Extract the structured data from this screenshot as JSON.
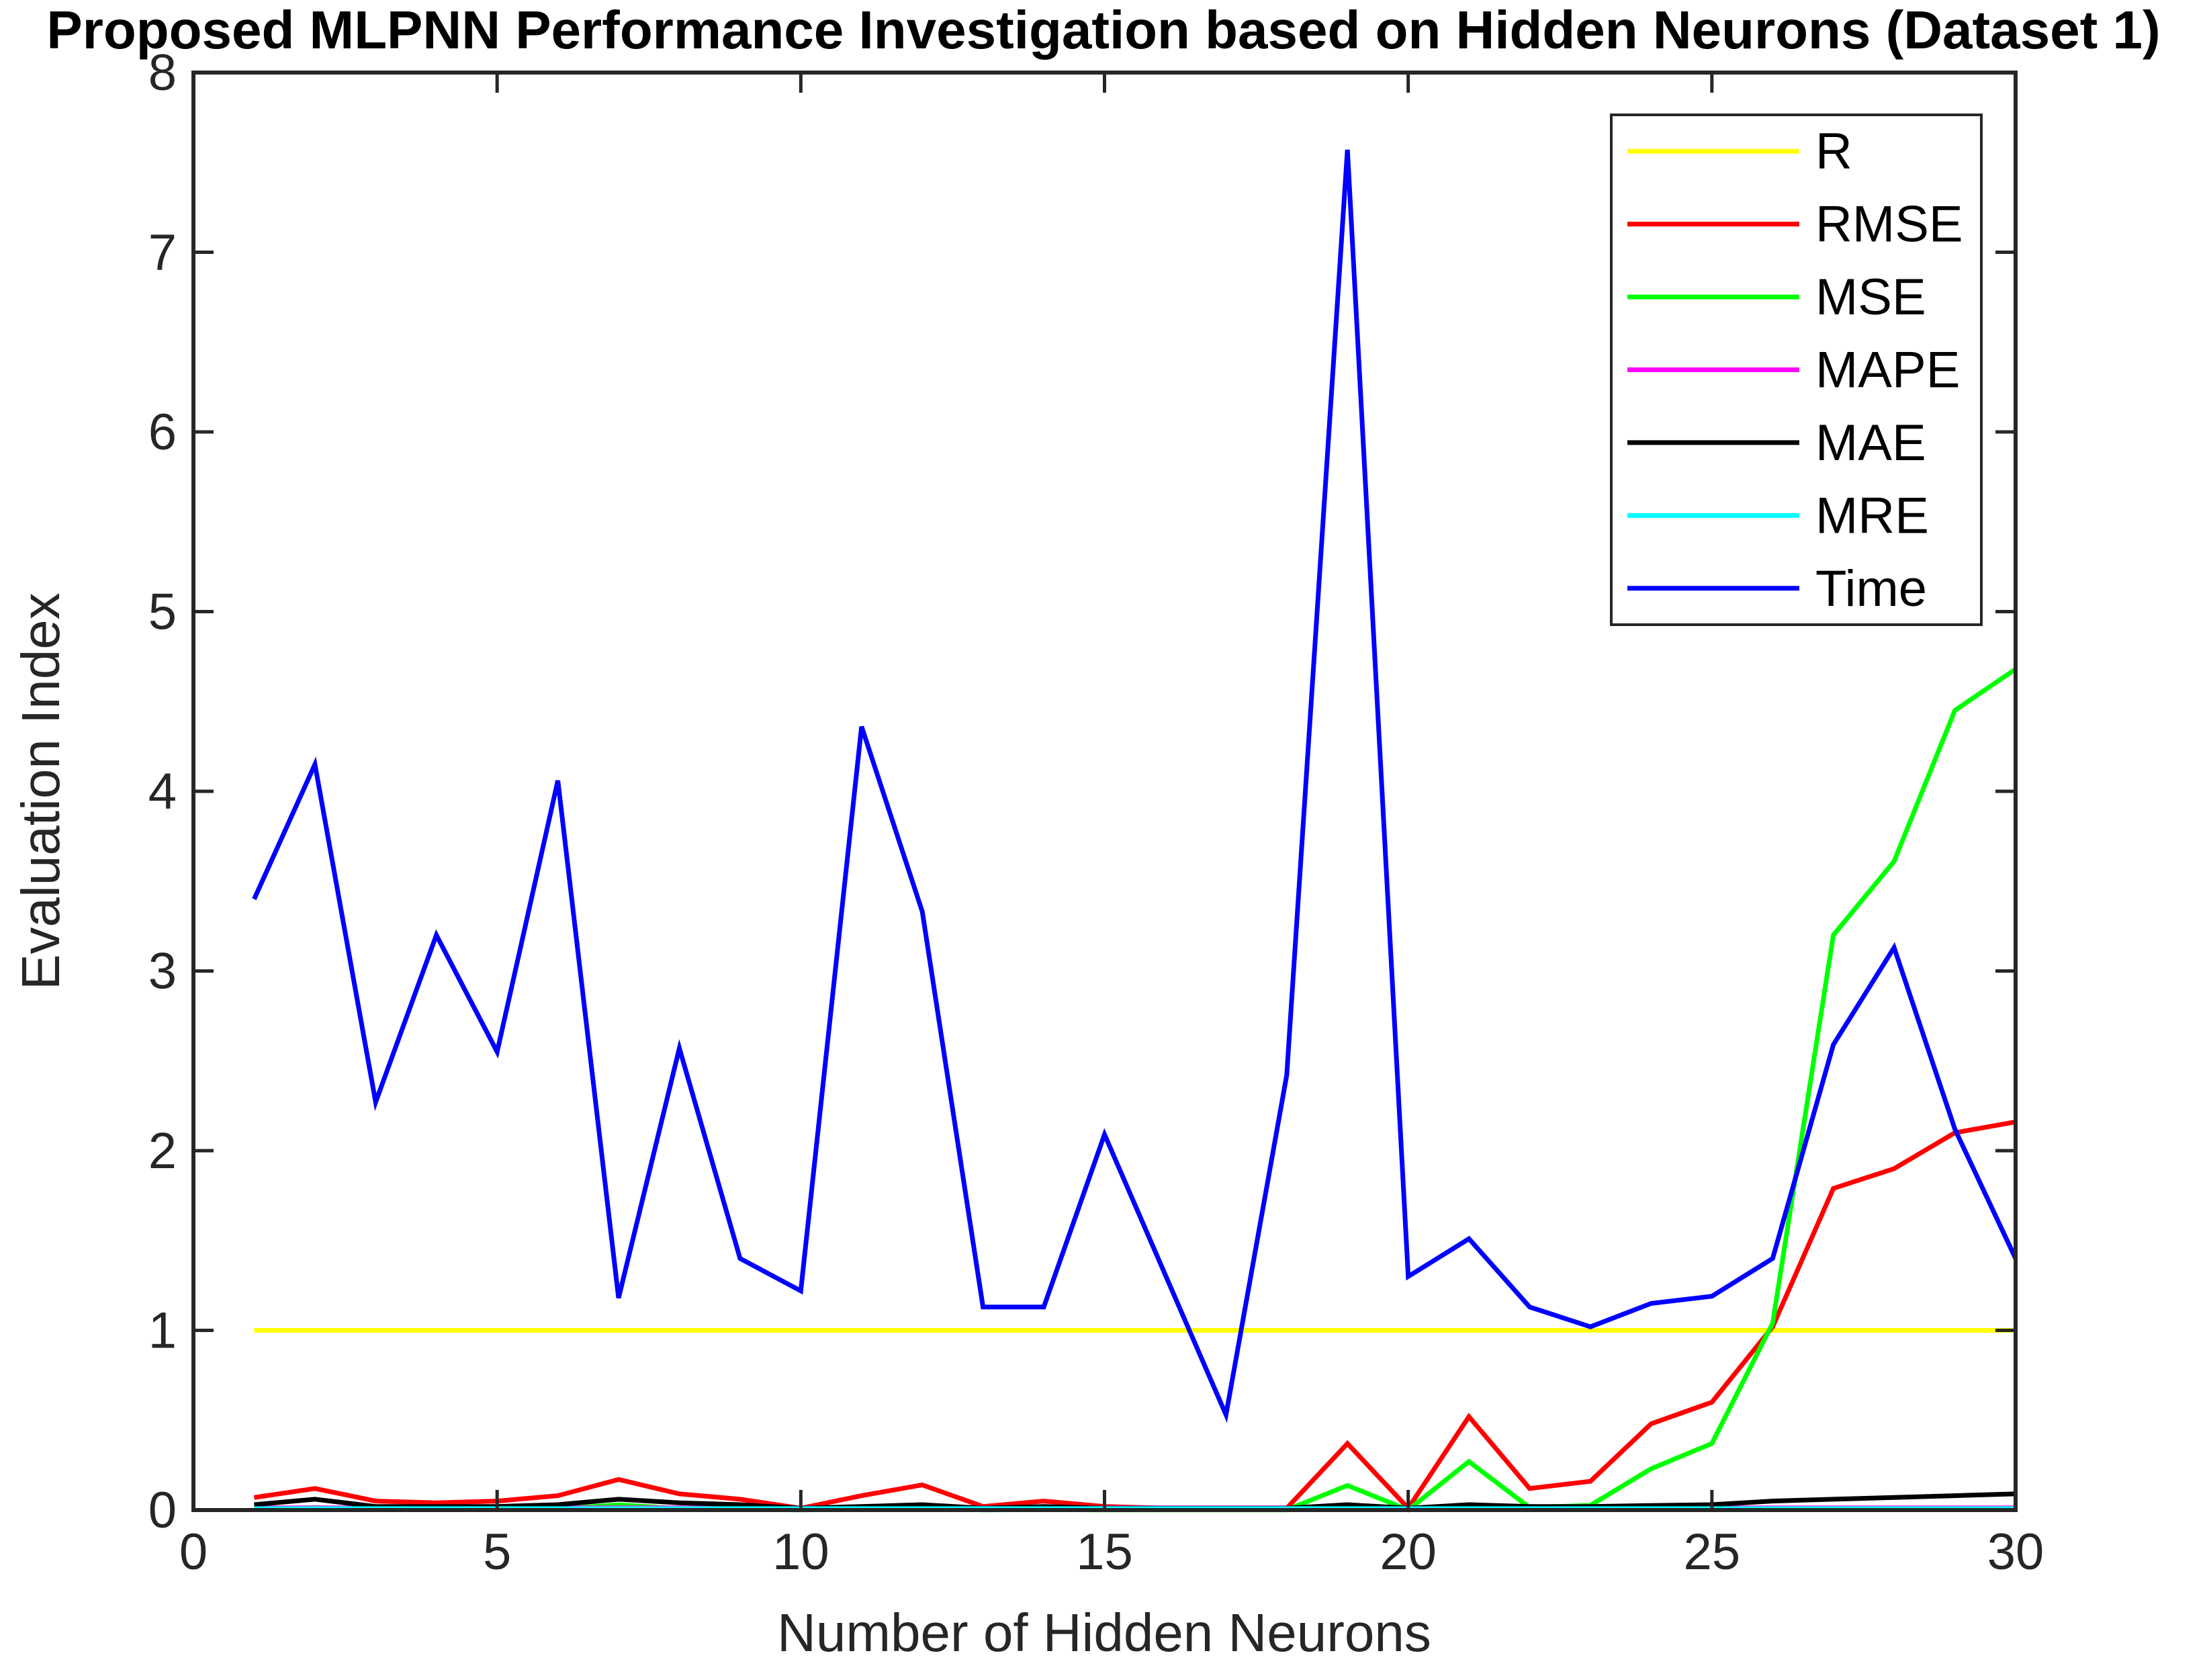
{
  "title": "Proposed MLPNN Performance Investigation based on Hidden Neurons (Dataset 1)",
  "axes": {
    "xlabel": "Number of Hidden Neurons",
    "ylabel": "Evaluation Index",
    "xtick_labels": [
      "0",
      "5",
      "10",
      "15",
      "20",
      "25",
      "30"
    ],
    "ytick_labels": [
      "0",
      "1",
      "2",
      "3",
      "4",
      "5",
      "6",
      "7",
      "8"
    ]
  },
  "legend": {
    "position": "top-right",
    "entries": [
      {
        "label": "R",
        "color": "#FFFF00"
      },
      {
        "label": "RMSE",
        "color": "#FF0000"
      },
      {
        "label": "MSE",
        "color": "#00FF00"
      },
      {
        "label": "MAPE",
        "color": "#FF00FF"
      },
      {
        "label": "MAE",
        "color": "#000000"
      },
      {
        "label": "MRE",
        "color": "#00FFFF"
      },
      {
        "label": "Time",
        "color": "#0000FF"
      }
    ]
  },
  "chart_data": {
    "type": "line",
    "title": "Proposed MLPNN Performance Investigation based on Hidden Neurons (Dataset 1)",
    "xlabel": "Number of Hidden Neurons",
    "ylabel": "Evaluation Index",
    "xlim": [
      0,
      30
    ],
    "ylim": [
      0,
      8
    ],
    "xticks": [
      0,
      5,
      10,
      15,
      20,
      25,
      30
    ],
    "yticks": [
      0,
      1,
      2,
      3,
      4,
      5,
      6,
      7,
      8
    ],
    "grid": false,
    "legend_position": "top-right",
    "x": [
      1,
      2,
      3,
      4,
      5,
      6,
      7,
      8,
      9,
      10,
      11,
      12,
      13,
      14,
      15,
      16,
      17,
      18,
      19,
      20,
      21,
      22,
      23,
      24,
      25,
      26,
      27,
      28,
      29,
      30
    ],
    "series": [
      {
        "name": "R",
        "color": "#FFFF00",
        "values": [
          1,
          1,
          1,
          1,
          1,
          1,
          1,
          1,
          1,
          1,
          1,
          1,
          1,
          1,
          1,
          1,
          1,
          1,
          1,
          1,
          1,
          1,
          1,
          1,
          1,
          1,
          1,
          1,
          1,
          1
        ]
      },
      {
        "name": "RMSE",
        "color": "#FF0000",
        "values": [
          0.07,
          0.12,
          0.05,
          0.04,
          0.05,
          0.08,
          0.17,
          0.09,
          0.06,
          0.01,
          0.08,
          0.14,
          0.02,
          0.05,
          0.02,
          0.01,
          0.005,
          0.01,
          0.37,
          0.01,
          0.52,
          0.12,
          0.16,
          0.48,
          0.6,
          1.02,
          1.79,
          1.9,
          2.1,
          2.16
        ]
      },
      {
        "name": "MSE",
        "color": "#00FF00",
        "values": [
          0.005,
          0.014,
          0.003,
          0.002,
          0.003,
          0.006,
          0.029,
          0.008,
          0.004,
          0.001,
          0.006,
          0.02,
          0.001,
          0.003,
          0.001,
          0.001,
          0.001,
          0.001,
          0.137,
          0.001,
          0.27,
          0.014,
          0.026,
          0.23,
          0.37,
          1.04,
          3.2,
          3.61,
          4.45,
          4.68
        ]
      },
      {
        "name": "MAPE",
        "color": "#FF00FF",
        "values": [
          0.012,
          0.012,
          0.012,
          0.012,
          0.012,
          0.012,
          0.012,
          0.012,
          0.012,
          0.012,
          0.012,
          0.012,
          0.012,
          0.012,
          0.012,
          0.012,
          0.012,
          0.012,
          0.012,
          0.012,
          0.012,
          0.012,
          0.012,
          0.012,
          0.012,
          0.012,
          0.012,
          0.012,
          0.012,
          0.012
        ]
      },
      {
        "name": "MAE",
        "color": "#000000",
        "values": [
          0.03,
          0.06,
          0.02,
          0.02,
          0.02,
          0.03,
          0.06,
          0.04,
          0.03,
          0.01,
          0.02,
          0.03,
          0.01,
          0.02,
          0.01,
          0.01,
          0.01,
          0.01,
          0.03,
          0.01,
          0.03,
          0.02,
          0.02,
          0.025,
          0.03,
          0.05,
          0.06,
          0.07,
          0.08,
          0.09
        ]
      },
      {
        "name": "MRE",
        "color": "#00FFFF",
        "values": [
          0.008,
          0.008,
          0.008,
          0.008,
          0.008,
          0.008,
          0.008,
          0.008,
          0.008,
          0.008,
          0.008,
          0.008,
          0.008,
          0.008,
          0.008,
          0.008,
          0.008,
          0.008,
          0.008,
          0.008,
          0.008,
          0.008,
          0.008,
          0.008,
          0.008,
          0.008,
          0.008,
          0.008,
          0.008,
          0.008
        ]
      },
      {
        "name": "Time",
        "color": "#0000FF",
        "values": [
          3.4,
          4.15,
          2.27,
          3.2,
          2.55,
          4.06,
          1.18,
          2.57,
          1.4,
          1.22,
          4.36,
          3.33,
          1.13,
          1.13,
          2.09,
          1.31,
          0.53,
          2.42,
          7.57,
          1.3,
          1.51,
          1.13,
          1.02,
          1.15,
          1.19,
          1.4,
          2.59,
          3.13,
          2.12,
          1.4
        ]
      }
    ]
  },
  "layout_colors": {
    "axis": "#262626",
    "background": "#ffffff"
  }
}
